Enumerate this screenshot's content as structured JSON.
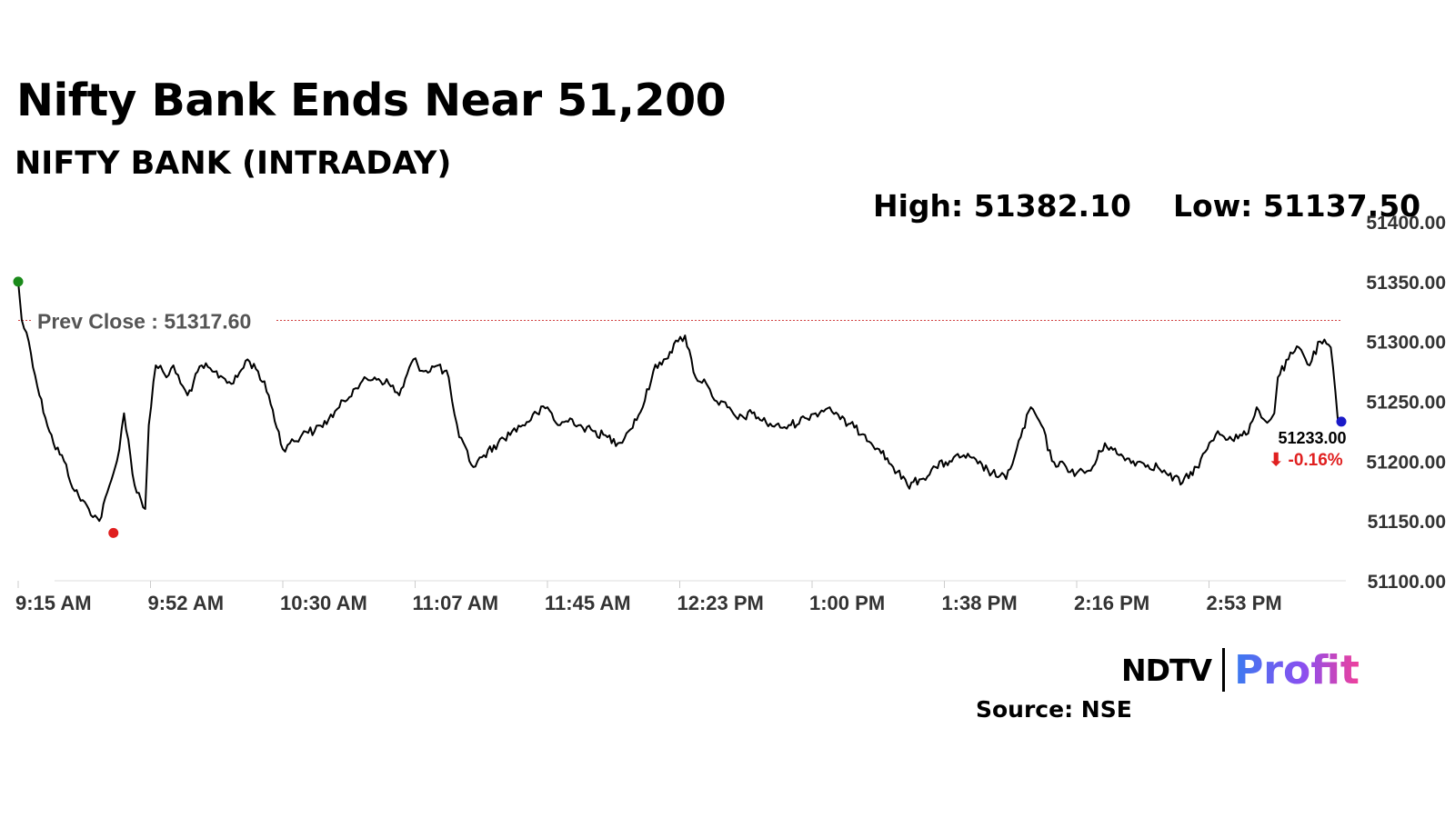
{
  "header": {
    "title": "Nifty Bank Ends Near 51,200",
    "subtitle": "NIFTY BANK (INTRADAY)"
  },
  "stats": {
    "high": "High: 51382.10",
    "low": "Low: 51137.50"
  },
  "chart_data": {
    "type": "line",
    "title": "Nifty Bank Ends Near 51,200",
    "subtitle": "NIFTY BANK (INTRADAY)",
    "xlabel": "",
    "ylabel": "",
    "x_tick_labels": [
      "9:15 AM",
      "9:52 AM",
      "10:30 AM",
      "11:07 AM",
      "11:45 AM",
      "12:23 PM",
      "1:00 PM",
      "1:38 PM",
      "2:16 PM",
      "2:53 PM"
    ],
    "y_tick_labels": [
      "51100.00",
      "51150.00",
      "51200.00",
      "51250.00",
      "51300.00",
      "51350.00",
      "51400.00"
    ],
    "y_ticks": [
      51100,
      51150,
      51200,
      51250,
      51300,
      51350,
      51400
    ],
    "ylim": [
      51100,
      51400
    ],
    "time_range": [
      "9:15 AM",
      "3:30 PM"
    ],
    "grid": false,
    "series": [
      {
        "name": "",
        "color": "#000000",
        "x": [
          "9:15",
          "9:16",
          "9:18",
          "9:21",
          "9:25",
          "9:28",
          "9:31",
          "9:35",
          "9:38",
          "9:42",
          "9:43",
          "9:45",
          "9:48",
          "9:51",
          "9:52",
          "9:54",
          "9:56",
          "9:57",
          "9:59",
          "10:01",
          "10:03",
          "10:07",
          "10:10",
          "10:13",
          "10:16",
          "10:20",
          "10:23",
          "10:26",
          "10:30",
          "10:32",
          "10:35",
          "10:36",
          "10:39",
          "10:43",
          "10:46",
          "10:50",
          "10:52",
          "10:56",
          "11:00",
          "11:03",
          "11:07",
          "11:10",
          "11:14",
          "11:17",
          "11:18",
          "11:20",
          "11:24",
          "11:27",
          "11:31",
          "11:35",
          "11:38",
          "11:42",
          "11:45",
          "11:48",
          "11:52",
          "11:55",
          "11:58",
          "12:02",
          "12:05",
          "12:08",
          "12:12",
          "12:15",
          "12:18",
          "12:22",
          "12:24",
          "12:27",
          "12:30",
          "12:31",
          "12:33",
          "12:36",
          "12:39",
          "12:43",
          "12:47",
          "12:51",
          "12:54",
          "12:58",
          "13:01",
          "13:05",
          "13:08",
          "13:12",
          "13:15",
          "13:19",
          "13:23",
          "13:27",
          "13:31",
          "13:35",
          "13:39",
          "13:43",
          "13:47",
          "13:51",
          "13:55",
          "13:58",
          "14:02",
          "14:05",
          "14:08",
          "14:12",
          "14:15",
          "14:19",
          "14:23",
          "14:27",
          "14:31",
          "14:34",
          "14:38",
          "14:41",
          "14:45",
          "14:49",
          "14:52",
          "14:55",
          "14:59",
          "15:03",
          "15:06",
          "15:08",
          "15:09",
          "15:10",
          "15:11",
          "15:12",
          "15:15",
          "15:18",
          "15:21",
          "15:24",
          "15:27",
          "15:29",
          "15:30"
        ],
        "y": [
          51350,
          51318,
          51300,
          51255,
          51215,
          51200,
          51175,
          51160,
          51150,
          51190,
          51200,
          51240,
          51180,
          51160,
          51230,
          51280,
          51275,
          51270,
          51280,
          51265,
          51255,
          51280,
          51275,
          51270,
          51265,
          51285,
          51275,
          51255,
          51210,
          51215,
          51220,
          51225,
          51225,
          51235,
          51245,
          51260,
          51265,
          51270,
          51265,
          51255,
          51285,
          51275,
          51280,
          51270,
          51250,
          51220,
          51195,
          51205,
          51215,
          51225,
          51230,
          51240,
          51245,
          51230,
          51235,
          51228,
          51225,
          51220,
          51215,
          51225,
          51245,
          51275,
          51285,
          51300,
          51305,
          51270,
          51265,
          51260,
          51250,
          51245,
          51235,
          51240,
          51232,
          51228,
          51230,
          51236,
          51240,
          51245,
          51235,
          51228,
          51222,
          51210,
          51195,
          51180,
          51185,
          51195,
          51200,
          51205,
          51198,
          51190,
          51185,
          51210,
          51245,
          51230,
          51200,
          51195,
          51190,
          51192,
          51215,
          51205,
          51200,
          51198,
          51195,
          51188,
          51182,
          51195,
          51210,
          51225,
          51218,
          51222,
          51245,
          51235,
          51232,
          51235,
          51240,
          51270,
          51285,
          51295,
          51280,
          51300,
          51295,
          51235,
          51233
        ]
      }
    ],
    "markers": {
      "open": {
        "x": "9:15",
        "y": 51350,
        "color": "#1a8a1a"
      },
      "low": {
        "x": "9:42",
        "y": 51140,
        "color": "#e01e1e"
      },
      "close": {
        "x": "15:30",
        "y": 51233,
        "color": "#1a1ac8"
      }
    },
    "prev_close": {
      "label": "Prev Close : 51317.60",
      "value": 51317.6,
      "color": "#d04040"
    },
    "last_value": {
      "label": "51233.00",
      "change": "⬇ -0.16%",
      "change_color": "#e02020"
    }
  },
  "footer": {
    "logo_ndtv": "NDTV",
    "logo_profit": "Profit",
    "source": "Source: NSE"
  }
}
